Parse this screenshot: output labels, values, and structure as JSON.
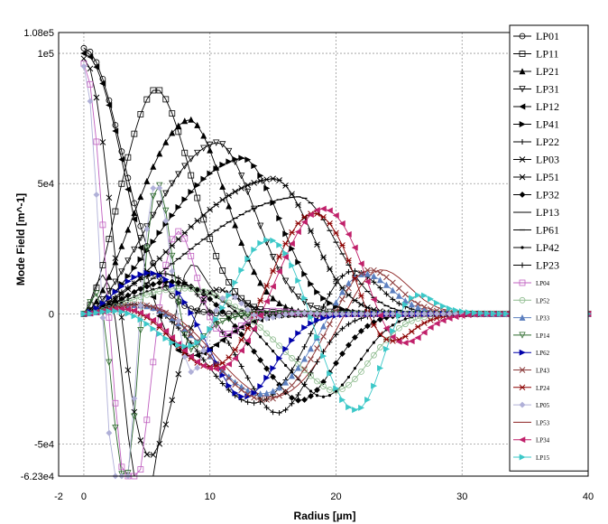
{
  "chart_data": {
    "type": "line",
    "title": "",
    "xlabel": "Radius [µm]",
    "ylabel": "Mode Field [m^-1]",
    "xlim": [
      -2,
      40
    ],
    "ylim": [
      -62300,
      108000
    ],
    "x_ticks": [
      {
        "value": -2,
        "label": "-2"
      },
      {
        "value": 0,
        "label": "0"
      },
      {
        "value": 10,
        "label": "10"
      },
      {
        "value": 20,
        "label": "20"
      },
      {
        "value": 30,
        "label": "30"
      },
      {
        "value": 40,
        "label": "40"
      }
    ],
    "y_ticks": [
      {
        "value": 108000,
        "label": "1.08e5"
      },
      {
        "value": 100000,
        "label": "1e5"
      },
      {
        "value": 50000,
        "label": "5e4"
      },
      {
        "value": 0,
        "label": "0"
      },
      {
        "value": -50000,
        "label": "-5e4"
      },
      {
        "value": -62300,
        "label": "-6.23e4"
      }
    ],
    "grid": true,
    "legend_position": "right",
    "series": [
      {
        "name": "LP01",
        "color": "#000000",
        "marker": "circle",
        "l": 0,
        "m": 1,
        "amp": 102000,
        "peak": 0,
        "width": 9.5
      },
      {
        "name": "LP11",
        "color": "#000000",
        "marker": "square",
        "l": 1,
        "m": 1,
        "amp": 87000,
        "peak": 5.5,
        "width": 9.5
      },
      {
        "name": "LP21",
        "color": "#000000",
        "marker": "triangle",
        "l": 2,
        "m": 1,
        "amp": 75000,
        "peak": 8.2,
        "width": 9.5
      },
      {
        "name": "LP31",
        "color": "#000000",
        "marker": "triangle-down",
        "l": 3,
        "m": 1,
        "amp": 66000,
        "peak": 10.5,
        "width": 9.5
      },
      {
        "name": "LP12",
        "color": "#000000",
        "marker": "tri-left",
        "l": 0,
        "m": 2,
        "amp": 100000,
        "peak": 0,
        "width": 9.5
      },
      {
        "name": "LP41",
        "color": "#000000",
        "marker": "tri-right",
        "l": 4,
        "m": 1,
        "amp": 60000,
        "peak": 12.5,
        "width": 9.5
      },
      {
        "name": "LP22",
        "color": "#000000",
        "marker": "plus",
        "l": 2,
        "m": 2,
        "amp": 58000,
        "peak": 14,
        "width": 9.5
      },
      {
        "name": "LP03",
        "color": "#000000",
        "marker": "x",
        "l": 0,
        "m": 3,
        "amp": 98000,
        "peak": 0,
        "width": 9.5
      },
      {
        "name": "LP51",
        "color": "#000000",
        "marker": "star",
        "l": 5,
        "m": 1,
        "amp": 52000,
        "peak": 15,
        "width": 9.5
      },
      {
        "name": "LP32",
        "color": "#000000",
        "marker": "diamond",
        "l": 3,
        "m": 2,
        "amp": 48000,
        "peak": 16,
        "width": 9.5
      },
      {
        "name": "LP13",
        "color": "#000000",
        "marker": "none",
        "l": 1,
        "m": 3,
        "amp": 80000,
        "peak": 4,
        "width": 9.5
      },
      {
        "name": "LP61",
        "color": "#000000",
        "marker": "hbar",
        "l": 6,
        "m": 1,
        "amp": 45000,
        "peak": 17,
        "width": 9.5
      },
      {
        "name": "LP42",
        "color": "#000000",
        "marker": "dot",
        "l": 4,
        "m": 2,
        "amp": 44000,
        "peak": 18,
        "width": 9.5
      },
      {
        "name": "LP23",
        "color": "#000000",
        "marker": "plus",
        "l": 2,
        "m": 3,
        "amp": 42000,
        "peak": 18.5,
        "width": 9.5
      },
      {
        "name": "LP04",
        "color": "#c060c0",
        "marker": "square",
        "l": 0,
        "m": 4,
        "amp": 96000,
        "peak": 0,
        "width": 9.5
      },
      {
        "name": "LP52",
        "color": "#8fbc8f",
        "marker": "circle",
        "l": 5,
        "m": 2,
        "amp": 40000,
        "peak": 19,
        "width": 9.5
      },
      {
        "name": "LP33",
        "color": "#5c7fbf",
        "marker": "triangle",
        "l": 3,
        "m": 3,
        "amp": 38000,
        "peak": 19.5,
        "width": 9.5
      },
      {
        "name": "LP14",
        "color": "#2e6b2e",
        "marker": "triangle-down",
        "l": 1,
        "m": 4,
        "amp": 70000,
        "peak": 3.5,
        "width": 9.5
      },
      {
        "name": "LP62",
        "color": "#0000aa",
        "marker": "tri-right",
        "l": 6,
        "m": 2,
        "amp": 54000,
        "peak": 11,
        "width": 9.5
      },
      {
        "name": "LP43",
        "color": "#8b3a3a",
        "marker": "x",
        "l": 4,
        "m": 3,
        "amp": 41000,
        "peak": 20,
        "width": 9.5
      },
      {
        "name": "LP24",
        "color": "#8b0000",
        "marker": "star",
        "l": 2,
        "m": 4,
        "amp": 40000,
        "peak": 20.5,
        "width": 9.5
      },
      {
        "name": "LP05",
        "color": "#b0b0d8",
        "marker": "diamond",
        "l": 0,
        "m": 5,
        "amp": 95000,
        "peak": 0,
        "width": 9.5
      },
      {
        "name": "LP53",
        "color": "#8b2020",
        "marker": "none",
        "l": 5,
        "m": 3,
        "amp": 40000,
        "peak": 21,
        "width": 9.5
      },
      {
        "name": "LP34",
        "color": "#c0206a",
        "marker": "tri-left",
        "l": 3,
        "m": 4,
        "amp": 42000,
        "peak": 21.5,
        "width": 9.5
      },
      {
        "name": "LP15",
        "color": "#3cc8c8",
        "marker": "tri-right",
        "l": 1,
        "m": 5,
        "amp": 37000,
        "peak": 22,
        "width": 9.5
      }
    ]
  }
}
